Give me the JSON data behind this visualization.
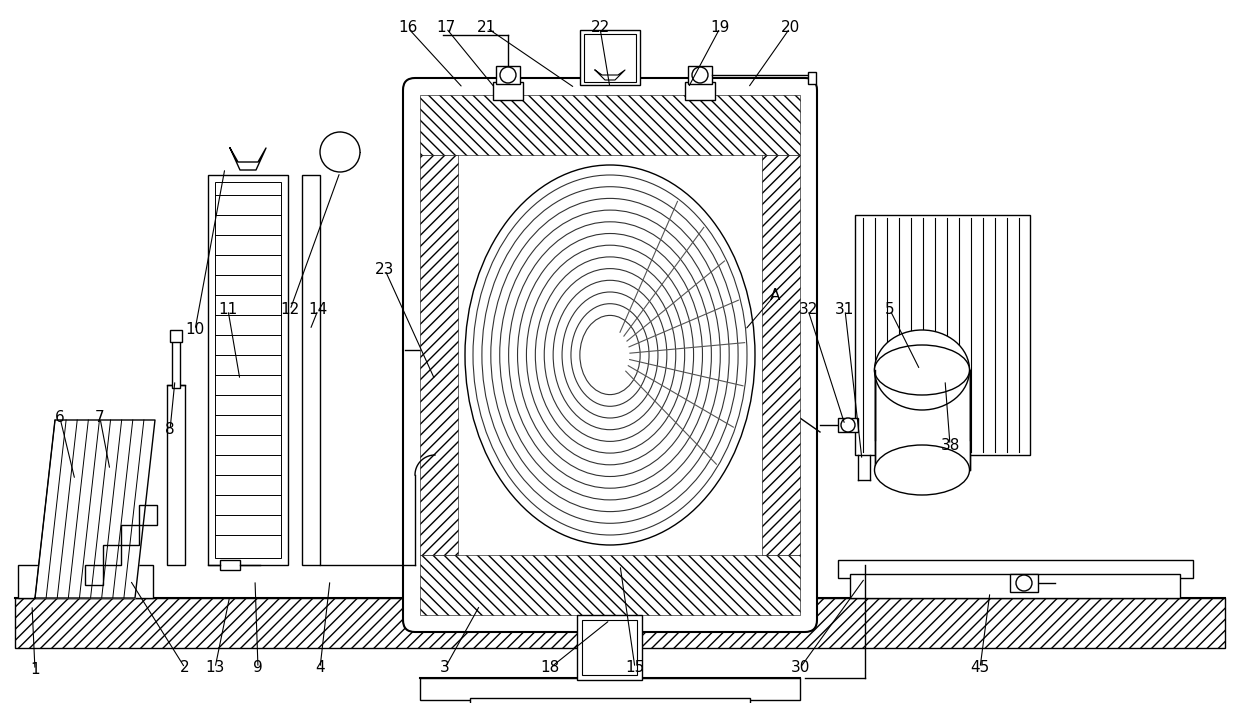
{
  "bg_color": "#ffffff",
  "line_color": "#000000",
  "figsize": [
    12.4,
    7.03
  ],
  "dpi": 100
}
